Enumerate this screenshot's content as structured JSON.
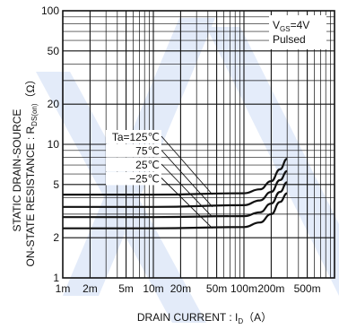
{
  "chart_data": {
    "type": "line",
    "x_scale": "log",
    "y_scale": "log",
    "xlim": [
      0.001,
      1.0
    ],
    "ylim": [
      1,
      100
    ],
    "grid": true,
    "xlabel": "DRAIN CURRENT : I",
    "xlabel_sub": "D",
    "xlabel_unit": "（A）",
    "ylabel_line1": "STATIC DRAIN-SOURCE",
    "ylabel_line2": "ON-STATE RESISTANCE : R",
    "ylabel_sub": "DS(on)",
    "ylabel_unit": "（Ω）",
    "x_ticks": [
      {
        "value": 0.001,
        "label": "1m"
      },
      {
        "value": 0.002,
        "label": "2m"
      },
      {
        "value": 0.005,
        "label": "5m"
      },
      {
        "value": 0.01,
        "label": "10m"
      },
      {
        "value": 0.02,
        "label": "20m"
      },
      {
        "value": 0.05,
        "label": "50m"
      },
      {
        "value": 0.1,
        "label": "100m"
      },
      {
        "value": 0.2,
        "label": "200m"
      },
      {
        "value": 0.5,
        "label": "500m"
      }
    ],
    "y_ticks": [
      {
        "value": 1,
        "label": "1"
      },
      {
        "value": 2,
        "label": "2"
      },
      {
        "value": 5,
        "label": "5"
      },
      {
        "value": 10,
        "label": "10"
      },
      {
        "value": 20,
        "label": "20"
      },
      {
        "value": 50,
        "label": "50"
      },
      {
        "value": 100,
        "label": "100"
      }
    ],
    "condition_box": {
      "line1": "V",
      "line1_sub": "GS",
      "line1_rest": "=4V",
      "line2": "Pulsed"
    },
    "series_prefix": "Ta=",
    "series": [
      {
        "name": "125℃",
        "x": [
          0.001,
          0.01,
          0.1,
          0.15,
          0.2,
          0.25,
          0.3
        ],
        "y": [
          4.2,
          4.2,
          4.3,
          4.6,
          5.3,
          6.5,
          7.8
        ]
      },
      {
        "name": "75℃",
        "x": [
          0.001,
          0.01,
          0.1,
          0.15,
          0.2,
          0.25,
          0.3
        ],
        "y": [
          3.4,
          3.4,
          3.5,
          3.8,
          4.4,
          5.4,
          6.3
        ]
      },
      {
        "name": "25℃",
        "x": [
          0.001,
          0.01,
          0.1,
          0.15,
          0.2,
          0.25,
          0.3
        ],
        "y": [
          2.85,
          2.85,
          2.9,
          3.1,
          3.6,
          4.4,
          5.2
        ]
      },
      {
        "name": "−25℃",
        "x": [
          0.001,
          0.01,
          0.1,
          0.15,
          0.2,
          0.25,
          0.3
        ],
        "y": [
          2.35,
          2.35,
          2.4,
          2.6,
          3.0,
          3.7,
          4.3
        ]
      }
    ]
  }
}
